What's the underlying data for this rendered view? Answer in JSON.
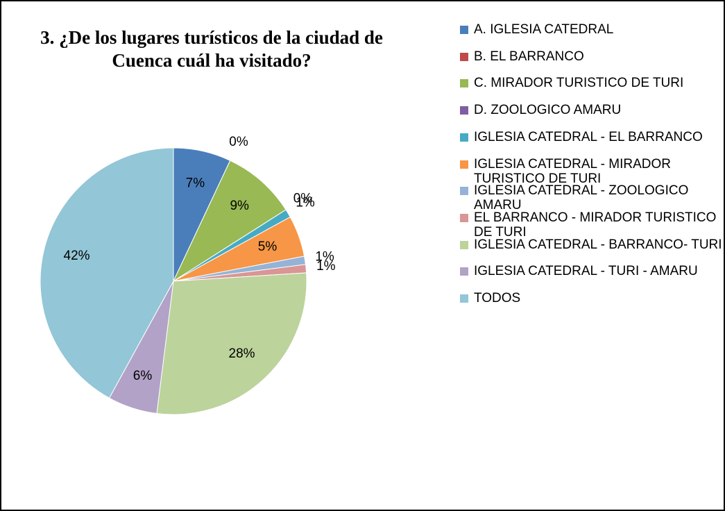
{
  "chart_data": {
    "type": "pie",
    "title": "3. ¿De los lugares turísticos de la ciudad de Cuenca cuál ha visitado?",
    "categories": [
      "A. IGLESIA CATEDRAL",
      "B. EL BARRANCO",
      "C. MIRADOR TURISTICO DE TURI",
      "D. ZOOLOGICO AMARU",
      "IGLESIA CATEDRAL - EL BARRANCO",
      "IGLESIA CATEDRAL - MIRADOR TURISTICO DE TURI",
      "IGLESIA CATEDRAL - ZOOLOGICO AMARU",
      "EL BARRANCO - MIRADOR TURISTICO DE TURI",
      "IGLESIA CATEDRAL - BARRANCO- TURI",
      "IGLESIA CATEDRAL - TURI - AMARU",
      "TODOS"
    ],
    "values": [
      7,
      0,
      9,
      0,
      1,
      5,
      1,
      1,
      28,
      6,
      42
    ],
    "value_labels": [
      "7%",
      "0%",
      "9%",
      "0%",
      "1%",
      "5%",
      "1%",
      "1%",
      "28%",
      "6%",
      "42%"
    ],
    "colors": [
      "#4a7ebb",
      "#be4b48",
      "#98b954",
      "#7d60a0",
      "#46aac5",
      "#f79646",
      "#95b3d7",
      "#d99694",
      "#bcd39b",
      "#b2a2c7",
      "#93c6d7"
    ],
    "legend": "right"
  }
}
